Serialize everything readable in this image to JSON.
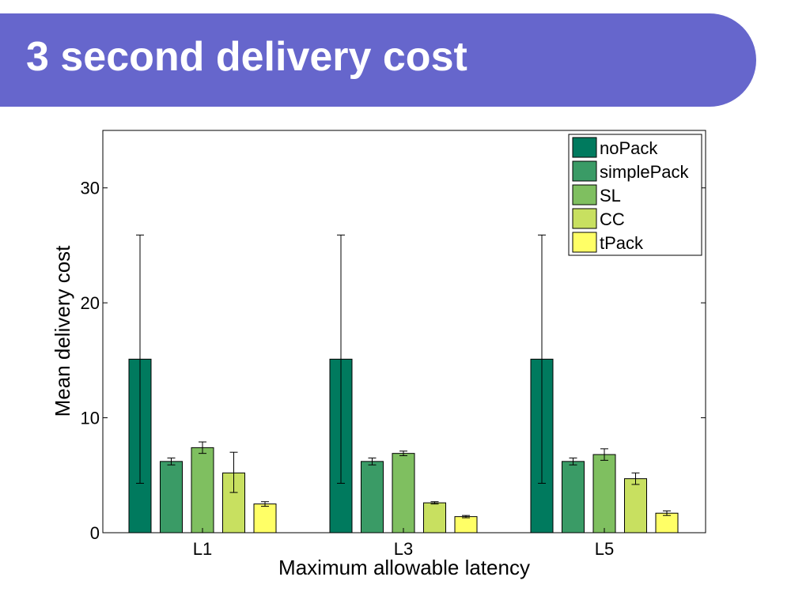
{
  "slide": {
    "title": "3 second delivery cost",
    "banner_color": "#6666cc"
  },
  "chart_data": {
    "type": "bar",
    "title": "",
    "xlabel": "Maximum allowable latency",
    "ylabel": "Mean delivery cost",
    "categories": [
      "L1",
      "L3",
      "L5"
    ],
    "ylim": [
      0,
      35
    ],
    "yticks": [
      0,
      10,
      20,
      30
    ],
    "grid": false,
    "legend_position": "top-right",
    "series": [
      {
        "name": "noPack",
        "color": "#007a5e",
        "values": [
          15.1,
          15.1,
          15.1
        ],
        "error_low": [
          4.3,
          4.3,
          4.3
        ],
        "error_high": [
          25.9,
          25.9,
          25.9
        ]
      },
      {
        "name": "simplePack",
        "color": "#3a9b66",
        "values": [
          6.2,
          6.2,
          6.2
        ],
        "error_low": [
          5.9,
          5.9,
          5.9
        ],
        "error_high": [
          6.5,
          6.5,
          6.5
        ]
      },
      {
        "name": "SL",
        "color": "#7fbf60",
        "values": [
          7.4,
          6.9,
          6.8
        ],
        "error_low": [
          6.9,
          6.7,
          6.3
        ],
        "error_high": [
          7.9,
          7.1,
          7.3
        ]
      },
      {
        "name": "CC",
        "color": "#c8e060",
        "values": [
          5.2,
          2.6,
          4.7
        ],
        "error_low": [
          3.5,
          2.5,
          4.2
        ],
        "error_high": [
          7.0,
          2.7,
          5.2
        ]
      },
      {
        "name": "tPack",
        "color": "#ffff66",
        "values": [
          2.5,
          1.4,
          1.7
        ],
        "error_low": [
          2.3,
          1.3,
          1.5
        ],
        "error_high": [
          2.7,
          1.5,
          1.9
        ]
      }
    ]
  }
}
